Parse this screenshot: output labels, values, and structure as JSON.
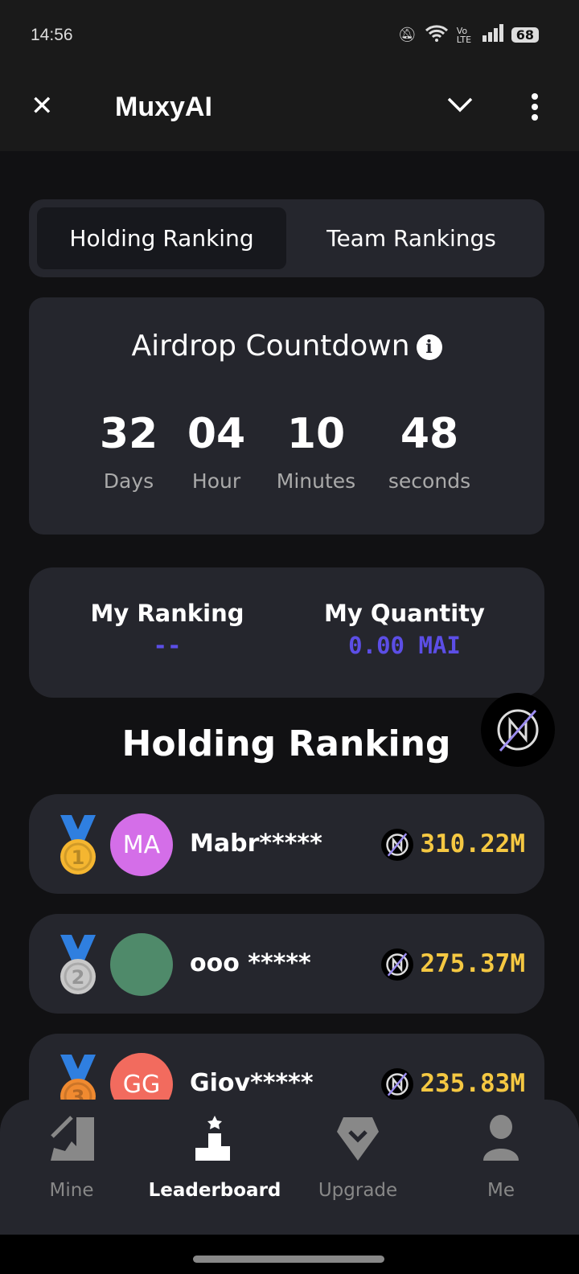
{
  "status_bar": {
    "time": "14:56",
    "battery": "68",
    "network": "Vo LTE"
  },
  "app_bar": {
    "title": "MuxyAI"
  },
  "tabs": [
    {
      "label": "Holding Ranking",
      "active": true
    },
    {
      "label": "Team Rankings",
      "active": false
    }
  ],
  "countdown": {
    "title": "Airdrop Countdown",
    "units": [
      {
        "value": "32",
        "label": "Days"
      },
      {
        "value": "04",
        "label": "Hour"
      },
      {
        "value": "10",
        "label": "Minutes"
      },
      {
        "value": "48",
        "label": "seconds"
      }
    ]
  },
  "mine": {
    "ranking_label": "My Ranking",
    "ranking_value": "--",
    "quantity_label": "My Quantity",
    "quantity_value": "0.00 MAI"
  },
  "section_title": "Holding Ranking",
  "rows": [
    {
      "rank": "1",
      "initials": "MA",
      "name": "Mabr*****",
      "amount": "310.22M",
      "avatar_color": "#d46ee8",
      "medal": "#f5b630"
    },
    {
      "rank": "2",
      "initials": "",
      "name": "ooo *****",
      "amount": "275.37M",
      "avatar_color": "#4f8a6a",
      "medal": "#c8c8c8"
    },
    {
      "rank": "3",
      "initials": "GG",
      "name": "Giov*****",
      "amount": "235.83M",
      "avatar_color": "#f26b5e",
      "medal": "#f08a30"
    }
  ],
  "nav": [
    {
      "label": "Mine",
      "icon": "pickaxe-icon"
    },
    {
      "label": "Leaderboard",
      "icon": "podium-icon",
      "active": true
    },
    {
      "label": "Upgrade",
      "icon": "diamond-icon"
    },
    {
      "label": "Me",
      "icon": "person-icon"
    }
  ],
  "colors": {
    "accent": "#5c4ee6",
    "amount": "#f5c842",
    "card": "#25262d"
  }
}
